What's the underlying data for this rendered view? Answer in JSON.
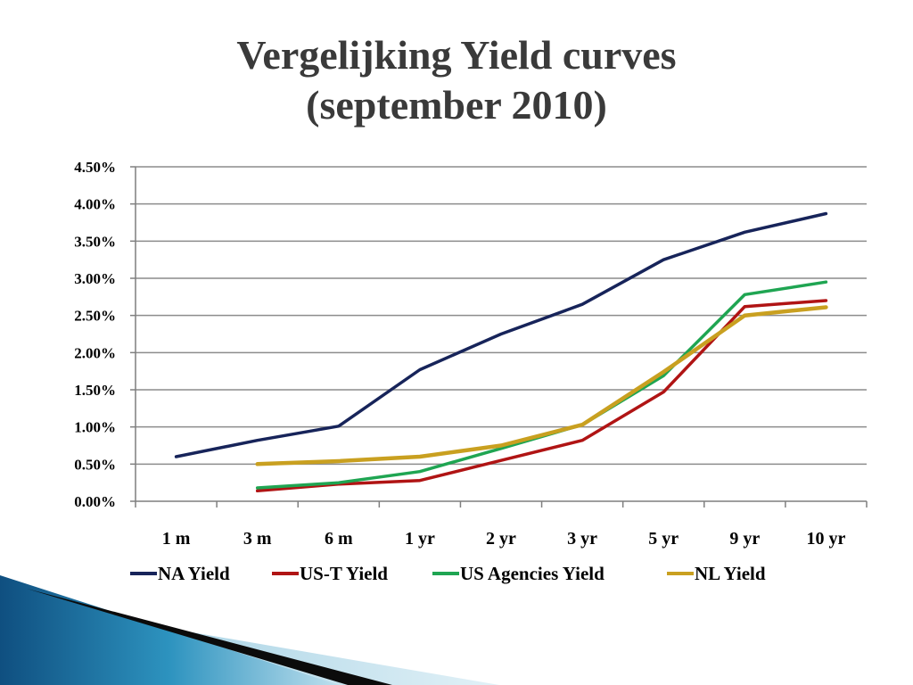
{
  "slide": {
    "title_line1": "Vergelijking Yield curves",
    "title_line2": "(september 2010)"
  },
  "chart_data": {
    "type": "line",
    "title": "Vergelijking Yield curves (september 2010)",
    "xlabel": "",
    "ylabel": "",
    "categories": [
      "1 m",
      "3 m",
      "6 m",
      "1 yr",
      "2 yr",
      "3 yr",
      "5 yr",
      "9 yr",
      "10 yr"
    ],
    "y_ticks": [
      "0.00%",
      "0.50%",
      "1.00%",
      "1.50%",
      "2.00%",
      "2.50%",
      "3.00%",
      "3.50%",
      "4.00%",
      "4.50%"
    ],
    "ylim": [
      0,
      4.5
    ],
    "grid": true,
    "legend": "bottom",
    "series": [
      {
        "name": "NA Yield",
        "color": "#17245a",
        "values": [
          0.6,
          0.82,
          1.01,
          1.77,
          2.25,
          2.65,
          3.25,
          3.62,
          3.87
        ]
      },
      {
        "name": "US-T Yield",
        "color": "#b01414",
        "values": [
          null,
          0.14,
          0.23,
          0.28,
          0.55,
          0.82,
          1.47,
          2.62,
          2.7
        ]
      },
      {
        "name": "US Agencies Yield",
        "color": "#1fa552",
        "values": [
          null,
          0.18,
          0.25,
          0.4,
          0.71,
          1.03,
          1.69,
          2.78,
          2.95
        ]
      },
      {
        "name": "NL Yield",
        "color": "#c9a020",
        "values": [
          null,
          0.5,
          0.54,
          0.6,
          0.75,
          1.03,
          1.74,
          2.5,
          2.61
        ]
      }
    ]
  }
}
